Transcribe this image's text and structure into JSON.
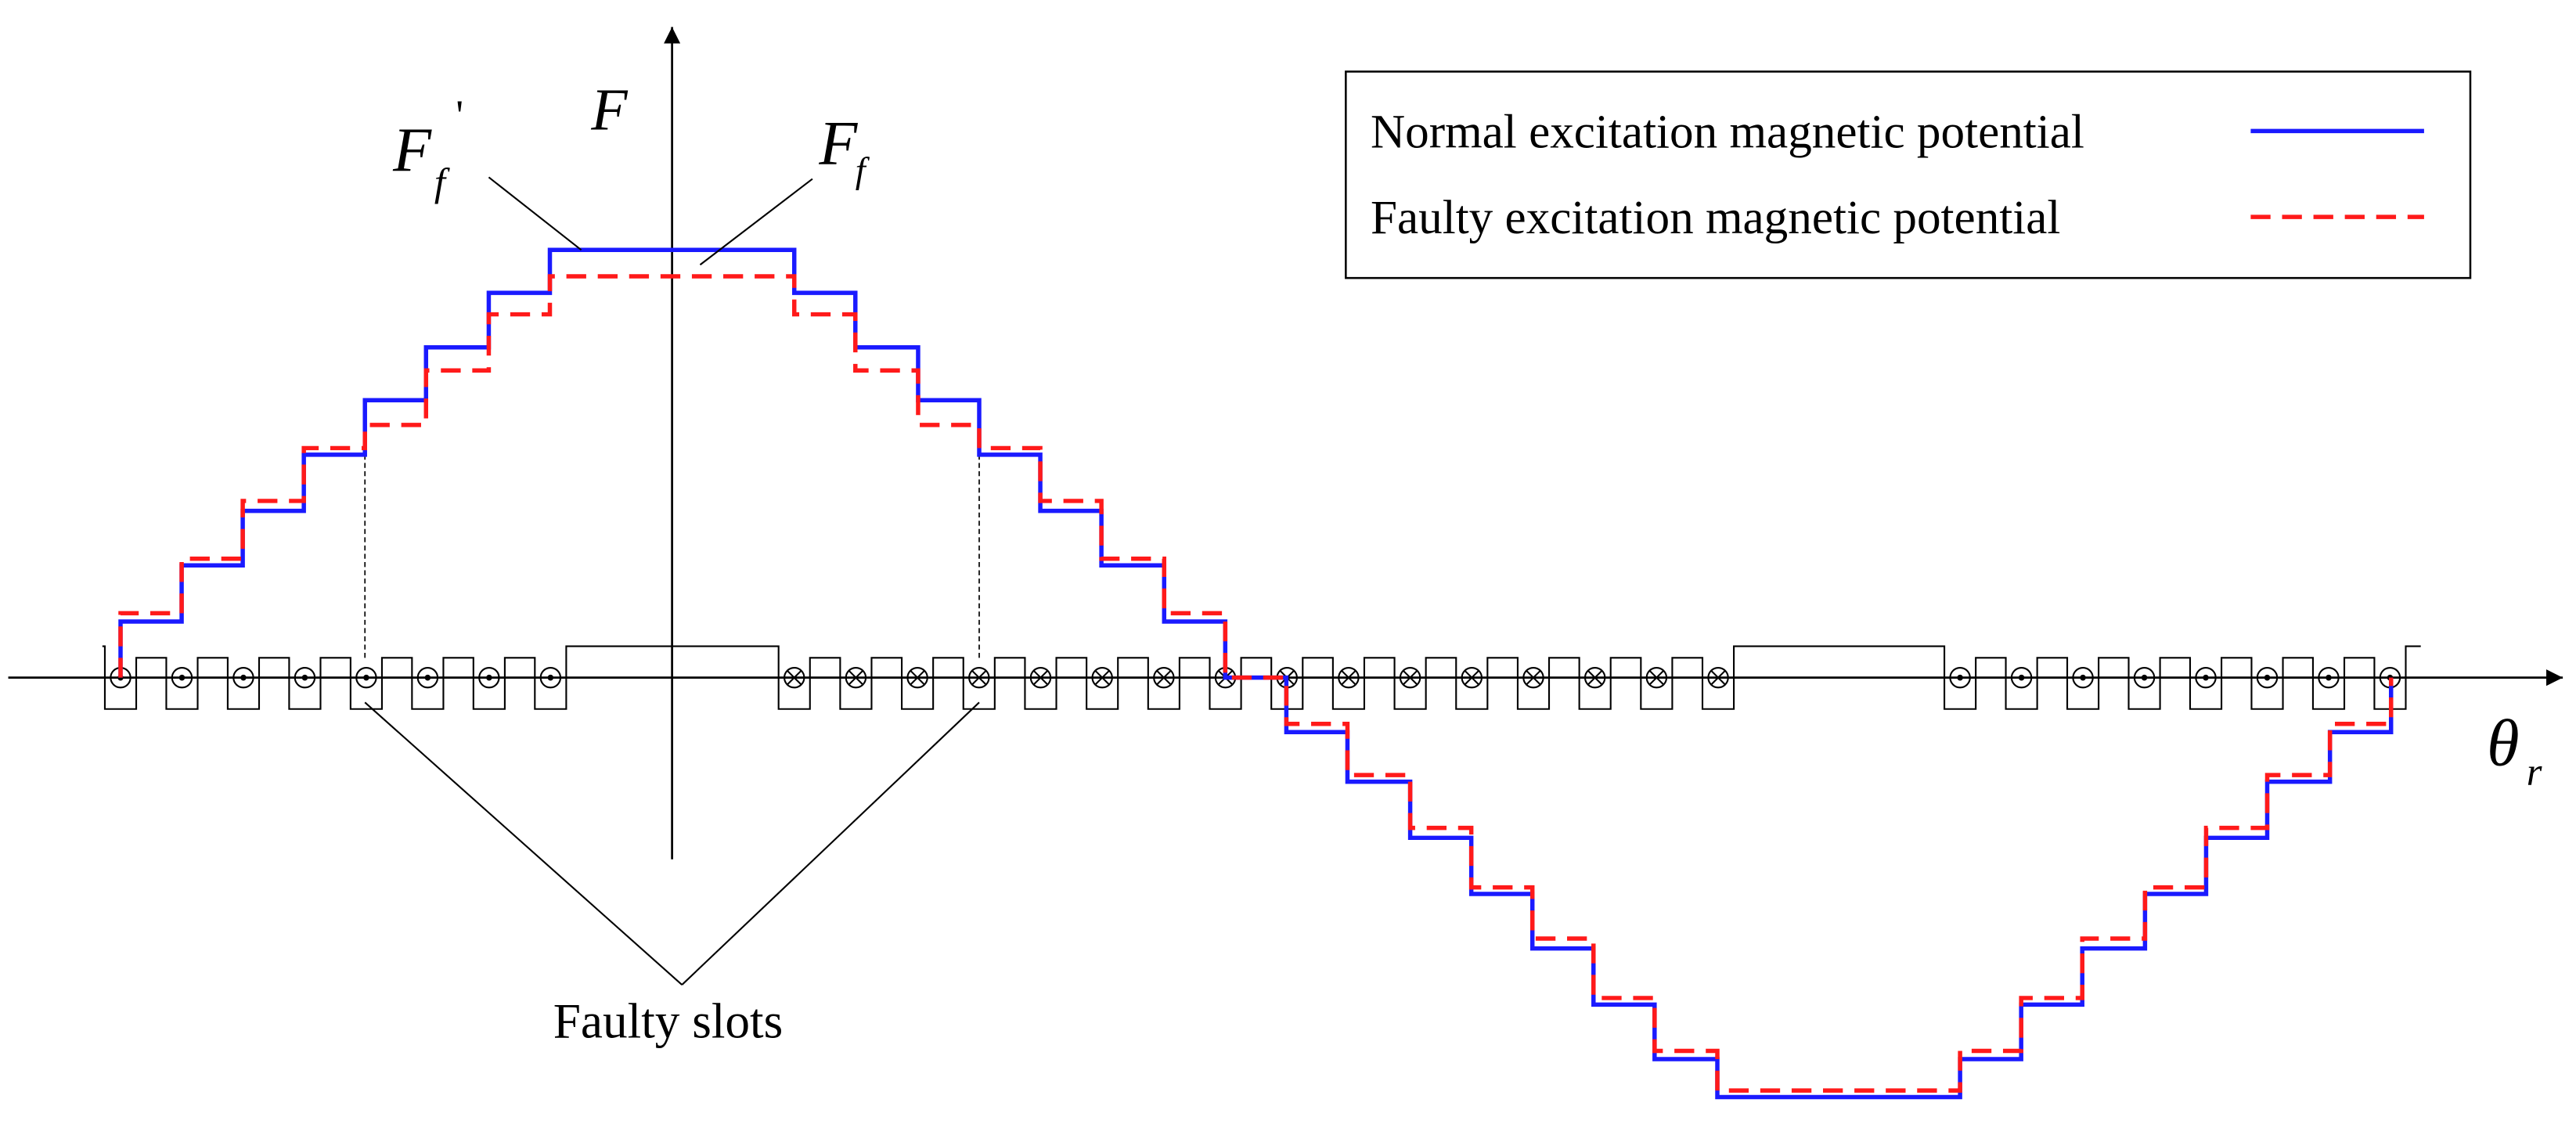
{
  "axis": {
    "y_label": "F",
    "x_label_main": "θ",
    "x_label_sub": "r"
  },
  "annotations": {
    "ff_prime_main": "F",
    "ff_prime_sub": "f",
    "ff_prime_mark": "'",
    "ff_main": "F",
    "ff_sub": "f",
    "faulty_slots": "Faulty slots"
  },
  "legend": {
    "normal_label": "Normal excitation magnetic potential",
    "faulty_label": "Faulty excitation magnetic potential"
  },
  "colors": {
    "normal": "#1a1aff",
    "faulty": "#ff1a1a",
    "ink": "#000000"
  },
  "chart_data": {
    "type": "line",
    "series": [
      {
        "name": "Normal excitation magnetic potential",
        "style": "solid"
      },
      {
        "name": "Faulty excitation magnetic potential",
        "style": "dashed"
      }
    ],
    "slot_currents_left": [
      "⊙",
      "⊙",
      "⊙",
      "⊙",
      "⊙",
      "⊙",
      "⊙",
      "⊙"
    ],
    "slot_currents_middle": [
      "⊗",
      "⊗",
      "⊗",
      "⊗",
      "⊗",
      "⊗",
      "⊗",
      "⊗",
      "⊗",
      "⊗",
      "⊗",
      "⊗",
      "⊗",
      "⊗",
      "⊗",
      "⊗"
    ],
    "slot_currents_right": [
      "⊙",
      "⊙",
      "⊙",
      "⊙",
      "⊙",
      "⊙",
      "⊙",
      "⊙"
    ],
    "faulty_slot_indices": [
      4,
      19
    ]
  }
}
